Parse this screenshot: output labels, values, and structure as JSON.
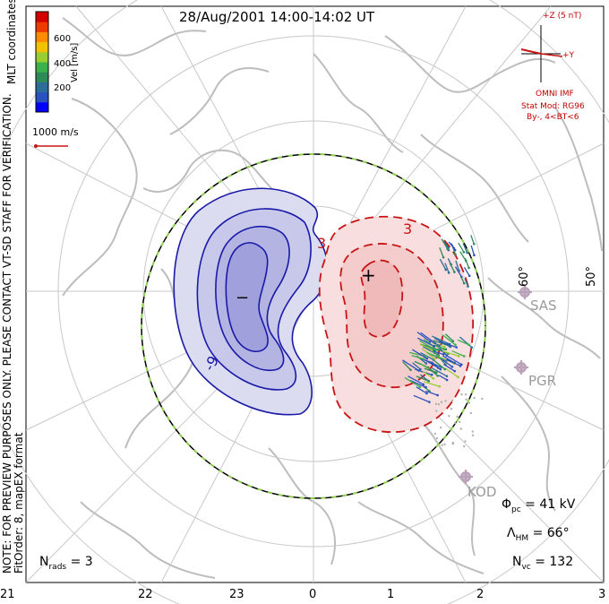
{
  "title": "28/Aug/2001 14:00-14:02 UT",
  "colorbar": {
    "label": "Vel [m/s]",
    "ticks": [
      "600",
      "400",
      "200"
    ],
    "colors": [
      "#d40000",
      "#ee3a00",
      "#ff8c00",
      "#f2c200",
      "#9acd32",
      "#3cb04a",
      "#2e8b57",
      "#2c6e99",
      "#2a52be",
      "#0000ff"
    ]
  },
  "scale_vector": {
    "label": "1000 m/s"
  },
  "coordinates_label": "MLT coordinates",
  "note_text": "NOTE: FOR PREVIEW PURPOSES ONLY. PLEASE CONTACT VT-SD STAFF FOR VERIFICATION.",
  "fit_text": "FitOrder: 8, mapEX format",
  "imf": {
    "axis_z": "+Z (5 nT)",
    "axis_y": "+Y",
    "source": "OMNI IMF",
    "model": "Stat Mod: RG96",
    "condition": "By-, 4<BT<6"
  },
  "latitude_labels": [
    "60°",
    "50°"
  ],
  "stations": [
    "SAS",
    "PGR",
    "KOD"
  ],
  "contour_labels": {
    "neg": "-9",
    "pos1": "3",
    "pos2": "3"
  },
  "extremum_symbols": {
    "min": "−",
    "max": "+"
  },
  "stats": {
    "phi_symbol": "Φ",
    "phi_sub": "pc",
    "phi_value": "= 41 kV",
    "lambda_symbol": "Λ",
    "lambda_sub": "HM",
    "lambda_value": "= 66°",
    "nvc_symbol": "N",
    "nvc_sub": "vc",
    "nvc_value": "= 132",
    "nrads_symbol": "N",
    "nrads_sub": "rads",
    "nrads_value": "= 3"
  },
  "mlt_labels": [
    "21",
    "22",
    "23",
    "0",
    "1",
    "2",
    "3"
  ],
  "map_colors": {
    "negative": "#1a1aa8",
    "positive": "#c81414",
    "boundary_green": "#8fd14f",
    "coast": "#bdbdbd",
    "grid": "#c8c8c8"
  }
}
